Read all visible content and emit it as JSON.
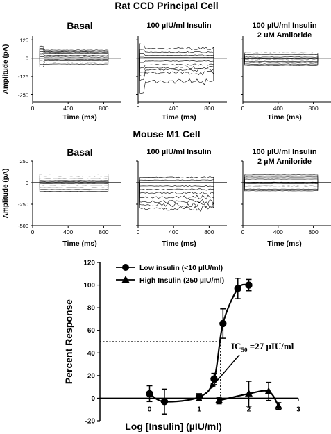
{
  "figure": {
    "section_a_title": "Rat CCD Principal Cell",
    "section_b_title": "Mouse M1 Cell"
  },
  "chart_data": [
    {
      "type": "line",
      "section": "Rat CCD Principal Cell",
      "panel_label": "Basal",
      "panel_label_2": "",
      "ylabel": "Amplitude (pA)",
      "xlabel": "Time (ms)",
      "xlim": [
        0,
        1000
      ],
      "ylim": [
        -300,
        150
      ],
      "xticks": [
        0,
        400,
        800
      ],
      "yticks": [
        125,
        0,
        -125,
        -250
      ],
      "step_start_ms": 80,
      "step_end_ms": 850,
      "traces": [
        {
          "name": "",
          "values": [
            55,
            45,
            40,
            30,
            18,
            8,
            -10,
            -18,
            -28,
            -40
          ]
        }
      ]
    },
    {
      "type": "line",
      "section": "Rat CCD Principal Cell",
      "panel_label": "100 µIU/ml Insulin",
      "panel_label_2": "",
      "ylabel": "",
      "xlabel": "Time (ms)",
      "xlim": [
        0,
        1000
      ],
      "ylim": [
        -300,
        150
      ],
      "xticks": [
        0,
        400,
        800
      ],
      "yticks": [
        125,
        0,
        -125,
        -250
      ],
      "step_start_ms": 20,
      "step_end_ms": 850,
      "traces": [
        {
          "name": "",
          "values": [
            65,
            40,
            20,
            5,
            -20,
            -45,
            -65,
            -80,
            -100,
            -160
          ]
        }
      ]
    },
    {
      "type": "line",
      "section": "Rat CCD Principal Cell",
      "panel_label": "100 µIU/ml Insulin",
      "panel_label_2": "2 uM Amiloride",
      "ylabel": "",
      "xlabel": "Time (ms)",
      "xlim": [
        0,
        1000
      ],
      "ylim": [
        -300,
        150
      ],
      "xticks": [
        0,
        400,
        800
      ],
      "yticks": [
        125,
        0,
        -125,
        -250
      ],
      "step_start_ms": 20,
      "step_end_ms": 850,
      "traces": [
        {
          "name": "",
          "values": [
            35,
            25,
            15,
            8,
            -5,
            -12,
            -22,
            -30,
            -40,
            -50
          ]
        }
      ]
    },
    {
      "type": "line",
      "section": "Mouse M1 Cell",
      "panel_label": "Basal",
      "panel_label_2": "",
      "ylabel": "Amplitude (pA)",
      "xlabel": "Time (ms)",
      "xlim": [
        0,
        1000
      ],
      "ylim": [
        -500,
        250
      ],
      "xticks": [
        0,
        400,
        800
      ],
      "yticks": [
        250,
        0,
        -250,
        -500
      ],
      "step_start_ms": 80,
      "step_end_ms": 850,
      "traces": [
        {
          "name": "",
          "values": [
            100,
            75,
            50,
            25,
            10,
            -10,
            -30,
            -55,
            -80,
            -100
          ]
        }
      ]
    },
    {
      "type": "line",
      "section": "Mouse M1 Cell",
      "panel_label": "100 µIU/ml Insulin",
      "panel_label_2": "",
      "ylabel": "",
      "xlabel": "Time (ms)",
      "xlim": [
        0,
        1000
      ],
      "ylim": [
        -500,
        250
      ],
      "xticks": [
        0,
        400,
        800
      ],
      "yticks": [
        250,
        0,
        -250,
        -500
      ],
      "step_start_ms": 20,
      "step_end_ms": 850,
      "traces": [
        {
          "name": "",
          "values": [
            60,
            30,
            0,
            -40,
            -80,
            -120,
            -170,
            -220,
            -260,
            -300
          ]
        }
      ]
    },
    {
      "type": "line",
      "section": "Mouse M1 Cell",
      "panel_label": "100 µIU/ml Insulin",
      "panel_label_2": "2 µM Amiloride",
      "ylabel": "",
      "xlabel": "Time (ms)",
      "xlim": [
        0,
        1000
      ],
      "ylim": [
        -500,
        250
      ],
      "xticks": [
        0,
        400,
        800
      ],
      "yticks": [
        250,
        0,
        -250,
        -500
      ],
      "step_start_ms": 20,
      "step_end_ms": 850,
      "traces": [
        {
          "name": "",
          "values": [
            90,
            65,
            40,
            20,
            5,
            -10,
            -30,
            -50,
            -75,
            -95
          ]
        }
      ]
    },
    {
      "type": "line",
      "title": "",
      "xlabel": "Log [Insulin] (µIU/ml)",
      "ylabel": "Percent Response",
      "xlim": [
        -1,
        3
      ],
      "ylim": [
        -20,
        120
      ],
      "xticks": [
        0,
        1,
        2,
        3
      ],
      "yticks": [
        -20,
        0,
        20,
        40,
        60,
        80,
        100,
        120
      ],
      "legend_position": "top-left",
      "annotation_main": "IC",
      "annotation_sub": "50",
      "annotation_rest": "=27 µIU/ml",
      "ic50_log": 1.43,
      "half_max": 50,
      "series": [
        {
          "name": "Low insulin (<10 µIU/ml)",
          "marker": "circle",
          "points": [
            {
              "x": 0,
              "y": 4,
              "err": 7
            },
            {
              "x": 0.3,
              "y": -3,
              "err": 11
            },
            {
              "x": 1,
              "y": 1,
              "err": 3
            },
            {
              "x": 1.3,
              "y": 17,
              "err": 5
            },
            {
              "x": 1.48,
              "y": 66,
              "err": 13
            },
            {
              "x": 1.78,
              "y": 97,
              "err": 9
            },
            {
              "x": 2,
              "y": 100,
              "err": 5
            }
          ]
        },
        {
          "name": "High Insulin (250 µIU/ml)",
          "marker": "triangle",
          "points": [
            {
              "x": 1.4,
              "y": -2,
              "err": 3
            },
            {
              "x": 2.0,
              "y": 4,
              "err": 11
            },
            {
              "x": 2.4,
              "y": 6,
              "err": 8
            },
            {
              "x": 2.6,
              "y": -7,
              "err": 3
            }
          ]
        }
      ]
    }
  ]
}
